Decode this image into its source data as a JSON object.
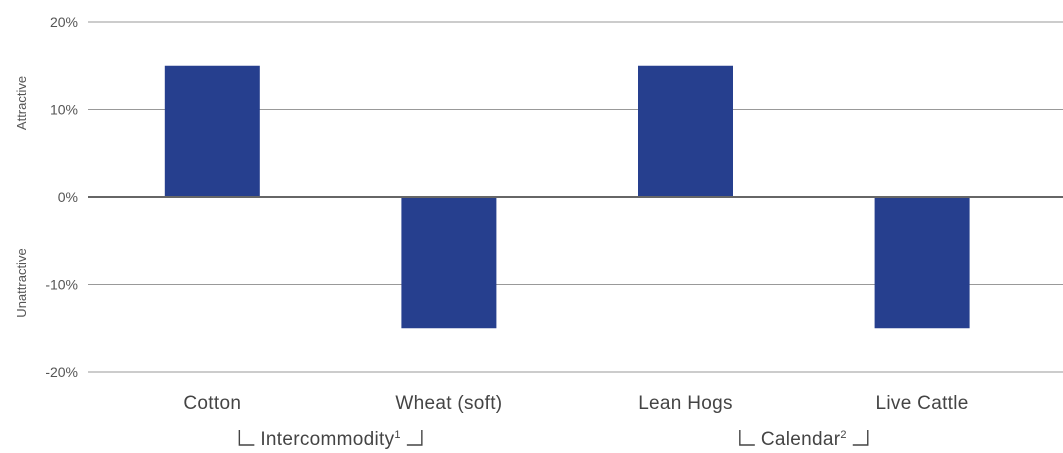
{
  "chart_data": {
    "type": "bar",
    "categories": [
      "Cotton",
      "Wheat (soft)",
      "Lean Hogs",
      "Live Cattle"
    ],
    "values": [
      15,
      -15,
      15,
      -15
    ],
    "ylim": [
      -20,
      20
    ],
    "yticks": [
      "20%",
      "10%",
      "0%",
      "-10%",
      "-20%"
    ],
    "ytick_values": [
      20,
      10,
      0,
      -10,
      -20
    ],
    "side_labels": {
      "top": "Attractive",
      "bottom": "Unattractive"
    },
    "groups": [
      {
        "label": "Intercommodity",
        "note": "1",
        "categories": [
          "Cotton",
          "Wheat (soft)"
        ]
      },
      {
        "label": "Calendar",
        "note": "2",
        "categories": [
          "Lean Hogs",
          "Live Cattle"
        ]
      }
    ],
    "grid": true,
    "colors": {
      "bar": "#263f8e",
      "grid": "#999999",
      "zero_line": "#666666"
    }
  }
}
